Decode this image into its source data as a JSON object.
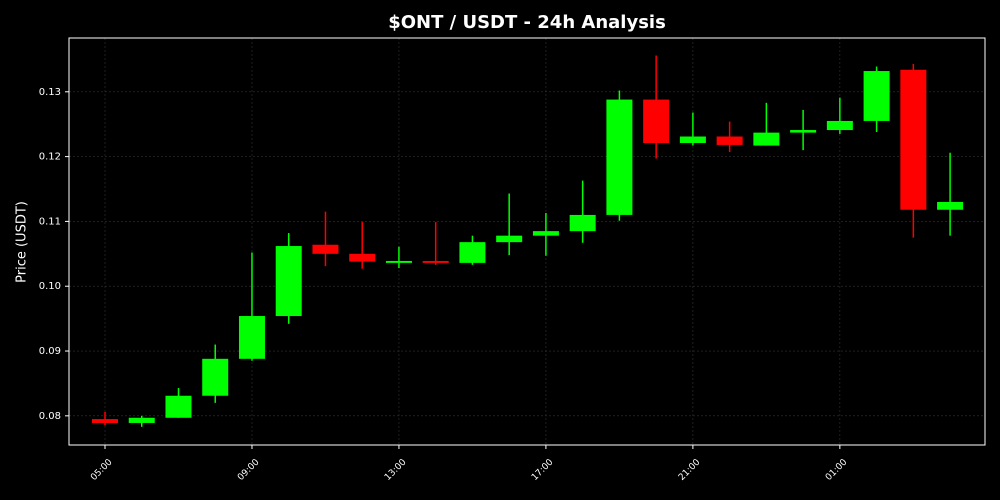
{
  "chart_data": {
    "type": "candlestick",
    "title": "$ONT / USDT - 24h Analysis",
    "y_label": "Price (USDT)",
    "categories": [
      "05:00",
      null,
      null,
      null,
      "09:00",
      null,
      null,
      null,
      "13:00",
      null,
      null,
      null,
      "17:00",
      null,
      null,
      null,
      "21:00",
      null,
      null,
      null,
      "01:00",
      null,
      null,
      null
    ],
    "open": [
      0.0795,
      0.0789,
      0.0797,
      0.0831,
      0.0888,
      0.0954,
      0.1064,
      0.105,
      0.1036,
      0.1039,
      0.1036,
      0.1068,
      0.1078,
      0.1085,
      0.111,
      0.1288,
      0.1221,
      0.1231,
      0.1217,
      0.1237,
      0.1241,
      0.1255,
      0.1334,
      0.1118
    ],
    "high": [
      0.0806,
      0.08,
      0.0843,
      0.091,
      0.1052,
      0.1082,
      0.1115,
      0.1099,
      0.1061,
      0.1099,
      0.1078,
      0.1143,
      0.1113,
      0.1163,
      0.1302,
      0.1356,
      0.1268,
      0.1254,
      0.1283,
      0.1272,
      0.1291,
      0.1339,
      0.1343,
      0.1206
    ],
    "low": [
      0.0785,
      0.0783,
      0.0797,
      0.082,
      0.0885,
      0.0942,
      0.1031,
      0.1027,
      0.1028,
      0.1033,
      0.1033,
      0.1048,
      0.1047,
      0.1067,
      0.1101,
      0.1197,
      0.1217,
      0.1207,
      0.1217,
      0.121,
      0.1235,
      0.1238,
      0.1075,
      0.1078
    ],
    "close": [
      0.0789,
      0.0797,
      0.0831,
      0.0888,
      0.0954,
      0.1062,
      0.105,
      0.1038,
      0.1039,
      0.1036,
      0.1068,
      0.1078,
      0.1085,
      0.111,
      0.1288,
      0.1221,
      0.1231,
      0.1218,
      0.1237,
      0.1241,
      0.1255,
      0.1332,
      0.1118,
      0.113
    ],
    "up_color": "#00ff00",
    "down_color": "#ff0000",
    "ylim": [
      0.0755,
      0.1383
    ],
    "yticks": [
      0.08,
      0.09,
      {
        "value": 0.1,
        "label": "0.10"
      },
      0.11,
      0.12,
      0.13
    ],
    "grid": true
  }
}
